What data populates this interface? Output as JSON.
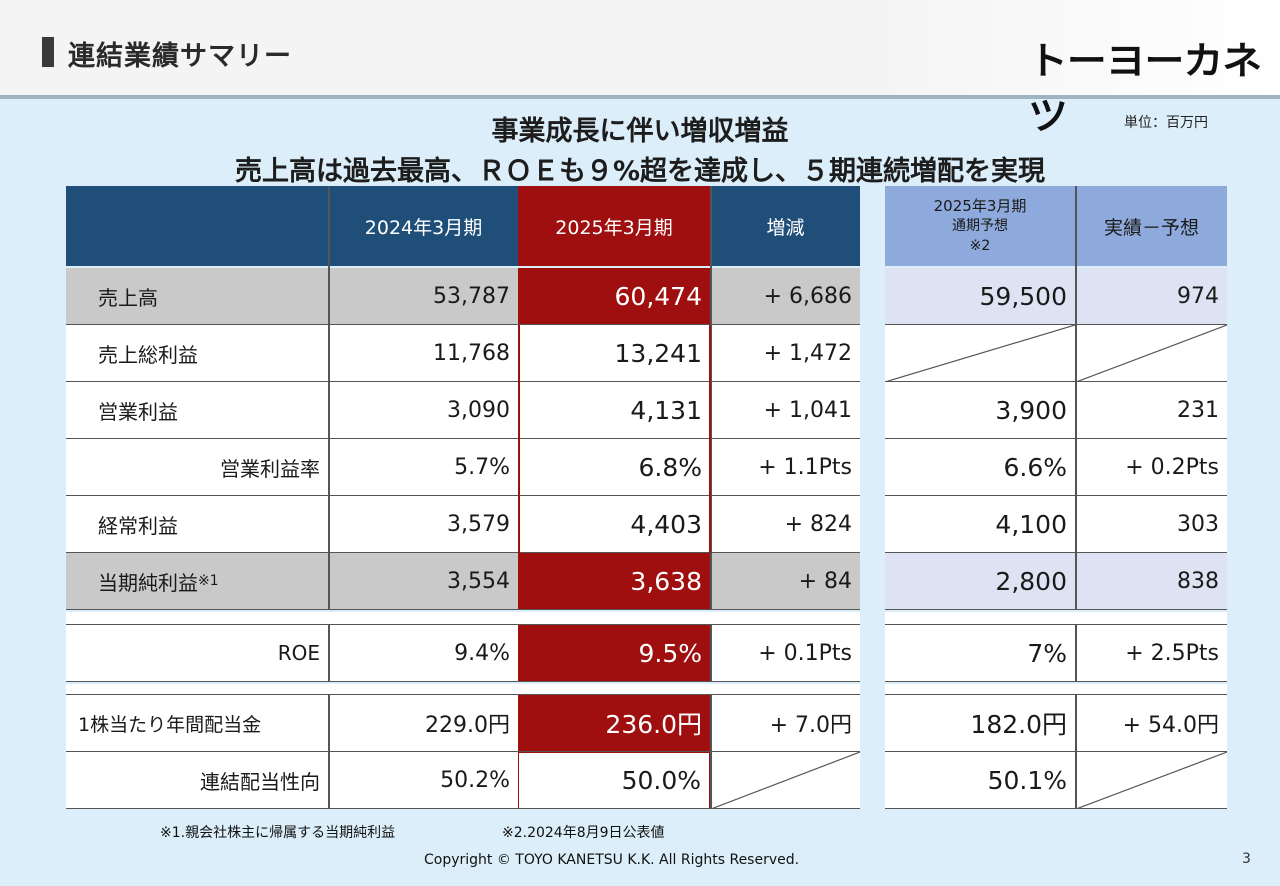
{
  "header": {
    "title": "連結業績サマリー",
    "logo": "トーヨーカネツ"
  },
  "unit": "単位：百万円",
  "headline": {
    "line1": "事業成長に伴い増収増益",
    "line2": "売上高は過去最高、ＲＯＥも９%超を達成し、５期連続増配を実現"
  },
  "table": {
    "headers": {
      "prev": "2024年3月期",
      "curr": "2025年3月期",
      "diff": "増減",
      "fc1": "2025年3月期",
      "fc2": "通期予想",
      "fc3": "※2",
      "actual_vs_fc": "実績－予想"
    },
    "rows": [
      {
        "label": "売上高",
        "prev": "53,787",
        "curr": "60,474",
        "diff": "+ 6,686",
        "fc": "59,500",
        "vs": "974"
      },
      {
        "label": "売上総利益",
        "prev": "11,768",
        "curr": "13,241",
        "diff": "+ 1,472",
        "fc": "",
        "vs": ""
      },
      {
        "label": "営業利益",
        "prev": "3,090",
        "curr": "4,131",
        "diff": "+ 1,041",
        "fc": "3,900",
        "vs": "231"
      },
      {
        "label": "営業利益率",
        "prev": "5.7%",
        "curr": "6.8%",
        "diff": "+ 1.1Pts",
        "fc": "6.6%",
        "vs": "+ 0.2Pts"
      },
      {
        "label": "経常利益",
        "prev": "3,579",
        "curr": "4,403",
        "diff": "+ 824",
        "fc": "4,100",
        "vs": "303"
      },
      {
        "label": "当期純利益",
        "label_note": "※1",
        "prev": "3,554",
        "curr": "3,638",
        "diff": "+ 84",
        "fc": "2,800",
        "vs": "838"
      },
      {
        "label": "ROE",
        "prev": "9.4%",
        "curr": "9.5%",
        "diff": "+ 0.1Pts",
        "fc": "7%",
        "vs": "+ 2.5Pts"
      },
      {
        "label": "1株当たり年間配当金",
        "prev": "229.0円",
        "curr": "236.0円",
        "diff": "+ 7.0円",
        "fc": "182.0円",
        "vs": "+ 54.0円"
      },
      {
        "label": "連結配当性向",
        "prev": "50.2%",
        "curr": "50.0%",
        "diff": "",
        "fc": "50.1%",
        "vs": ""
      }
    ]
  },
  "footnotes": {
    "note1": "※1.親会社株主に帰属する当期純利益",
    "note2": "※2.2024年8月9日公表値",
    "copyright": "Copyright © TOYO KANETSU K.K. All Rights Reserved."
  },
  "page_number": "3",
  "colors": {
    "header_blue": "#1f4e79",
    "highlight_red": "#a00f0f",
    "forecast_header": "#8ea9db",
    "forecast_fill": "#dde3f3",
    "row_gray": "#c9c9c9",
    "background": "#dbeef9"
  }
}
